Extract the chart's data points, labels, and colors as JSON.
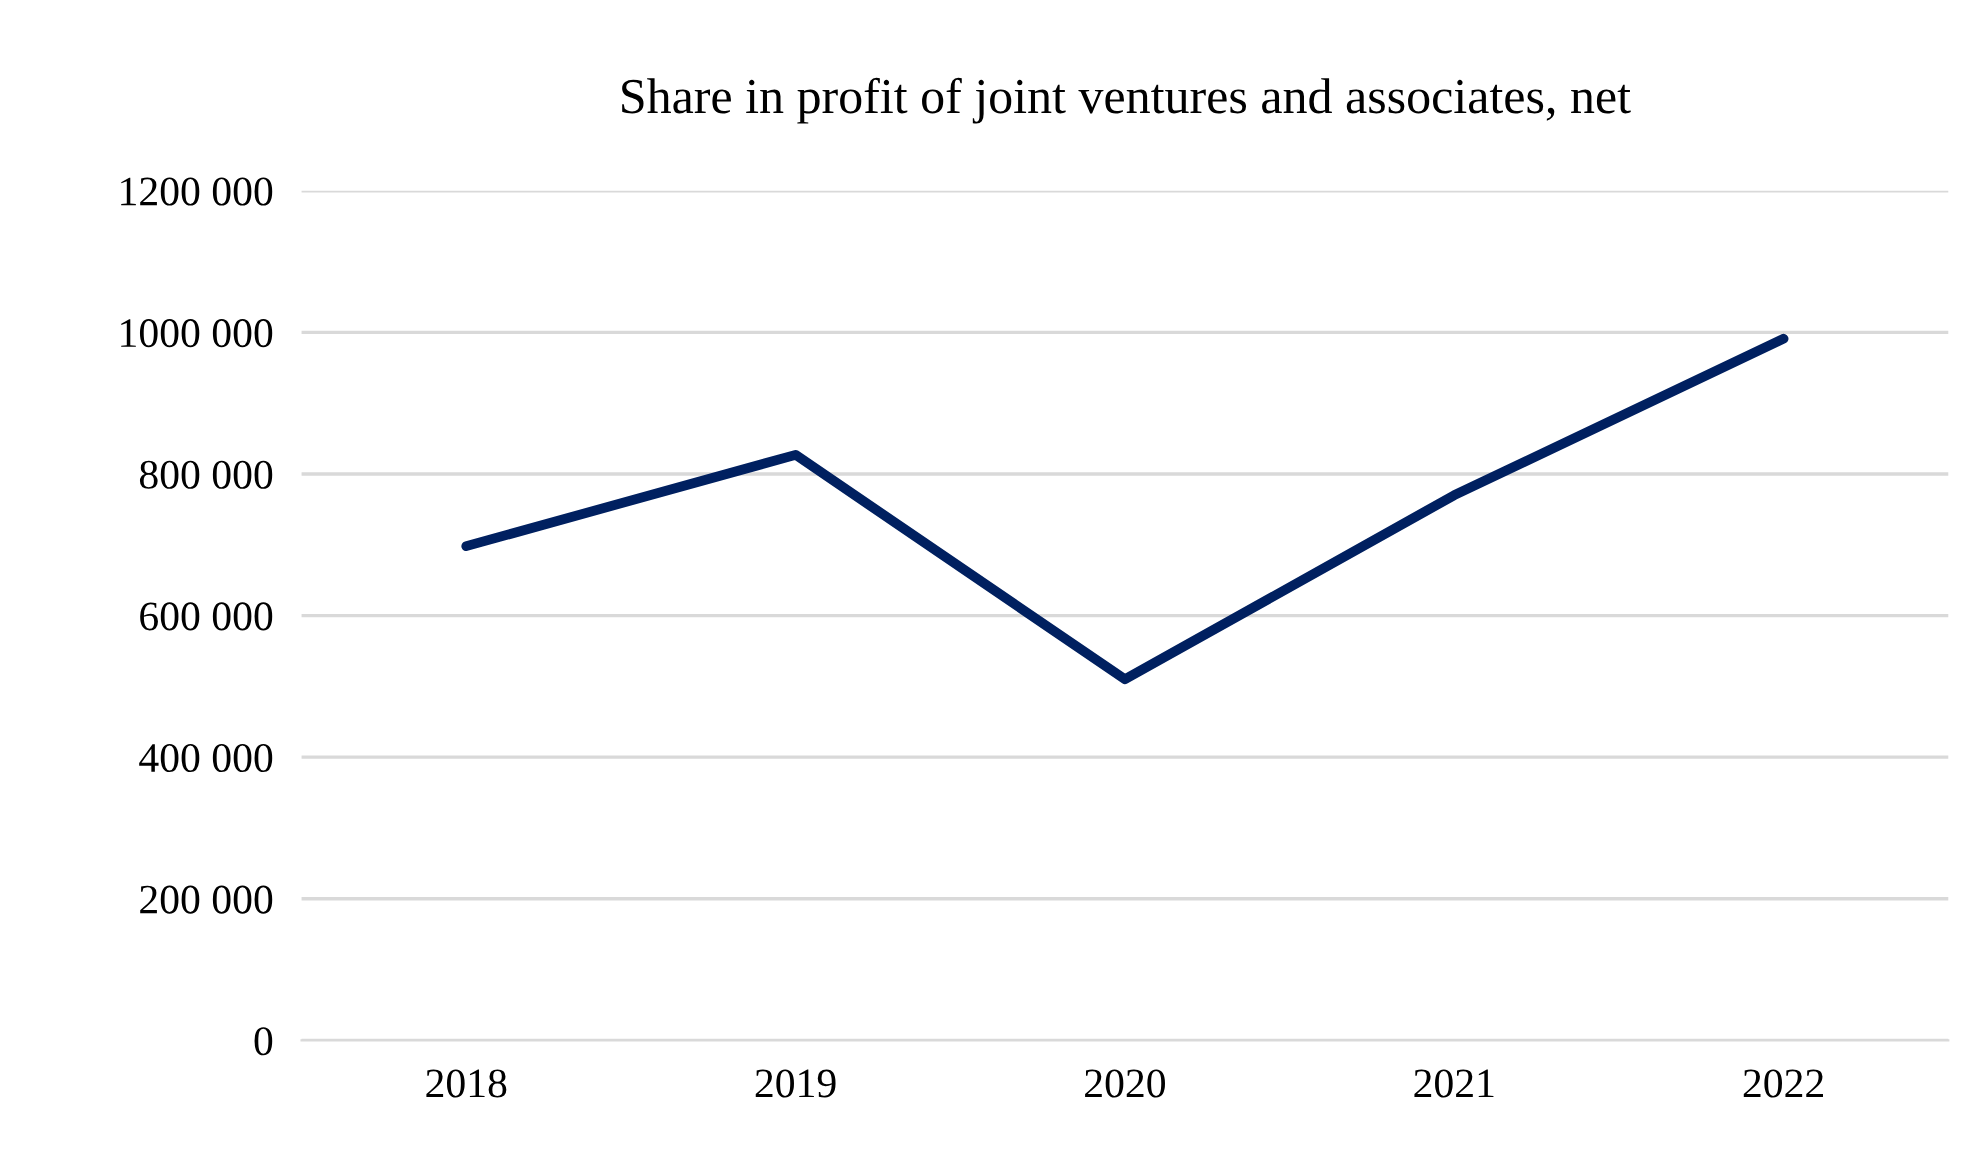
{
  "chart_data": {
    "type": "line",
    "title": "Share in profit of joint ventures and associates, net",
    "categories": [
      "2018",
      "2019",
      "2020",
      "2021",
      "2022"
    ],
    "series": [
      {
        "color": "#002060",
        "values": [
          698000,
          827000,
          510000,
          770000,
          991000
        ]
      }
    ],
    "ylim": [
      0,
      1200000
    ],
    "yticks": [
      {
        "value": 0,
        "label": "0"
      },
      {
        "value": 200000,
        "label": "200 000"
      },
      {
        "value": 400000,
        "label": "400 000"
      },
      {
        "value": 600000,
        "label": "600 000"
      },
      {
        "value": 800000,
        "label": "800 000"
      },
      {
        "value": 1000000,
        "label": "1000 000"
      },
      {
        "value": 1200000,
        "label": "1200 000"
      }
    ],
    "grid": "y",
    "legend": false,
    "marker": "none",
    "line_style": "solid"
  }
}
